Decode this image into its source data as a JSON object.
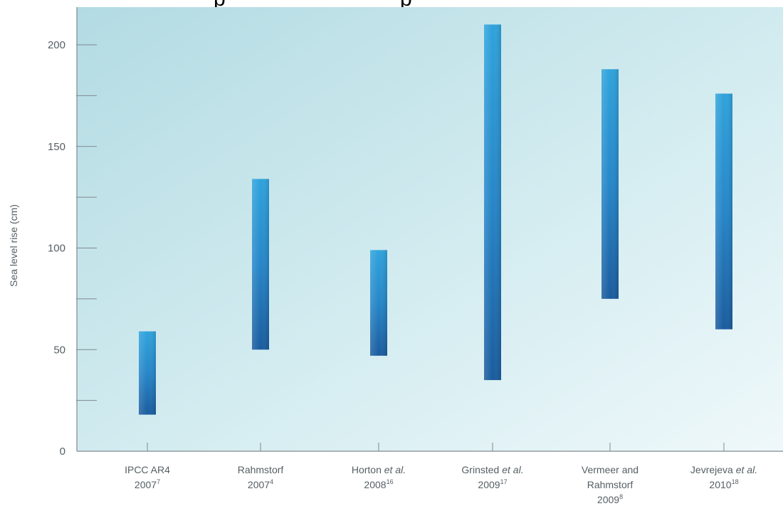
{
  "chart_data": {
    "type": "range-bar",
    "ylabel": "Sea level rise  (cm)",
    "ylim": [
      0,
      220
    ],
    "yticks_major": [
      0,
      50,
      100,
      150,
      200
    ],
    "yticks_minor": [
      25,
      75,
      125,
      175
    ],
    "categories": [
      {
        "name": "IPCC AR4",
        "year": "2007",
        "ref": "7"
      },
      {
        "name": "Rahmstorf",
        "year": "2007",
        "ref": "4"
      },
      {
        "name": "Horton et al.",
        "year": "2008",
        "ref": "16"
      },
      {
        "name": "Grinsted et al.",
        "year": "2009",
        "ref": "17"
      },
      {
        "name": "Vermeer and Rahmstorf",
        "year": "2009",
        "ref": "8"
      },
      {
        "name": "Jevrejeva et al.",
        "year": "2010",
        "ref": "18"
      }
    ],
    "ranges": [
      {
        "low": 18,
        "high": 59
      },
      {
        "low": 50,
        "high": 134
      },
      {
        "low": 47,
        "high": 99
      },
      {
        "low": 35,
        "high": 210
      },
      {
        "low": 75,
        "high": 188
      },
      {
        "low": 60,
        "high": 176
      }
    ],
    "colors": {
      "bar_dark": "#1a5fa0",
      "bar_light": "#2fa3dc",
      "background_top": "#b8dde4",
      "background_bottom": "#eaf6f8",
      "axis": "#7f8a8f",
      "text": "#555f63"
    }
  }
}
